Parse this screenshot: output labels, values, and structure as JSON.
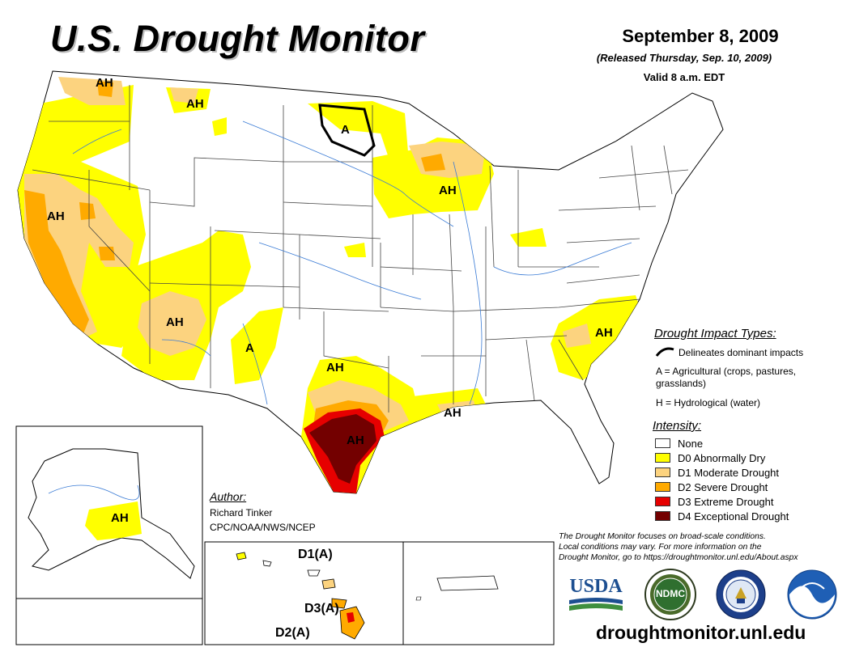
{
  "header": {
    "title": "U.S. Drought Monitor",
    "date": "September 8, 2009",
    "released": "(Released Thursday, Sep. 10, 2009)",
    "valid": "Valid 8 a.m. EDT"
  },
  "impact_types": {
    "title": "Drought Impact Types:",
    "delineates": "Delineates dominant impacts",
    "agricultural": "A = Agricultural (crops, pastures,",
    "agricultural_cont": "grasslands)",
    "hydrological": "H = Hydrological (water)"
  },
  "intensity": {
    "title": "Intensity:",
    "levels": [
      {
        "label": "None",
        "color": "#ffffff"
      },
      {
        "label": "D0 Abnormally Dry",
        "color": "#ffff00"
      },
      {
        "label": "D1 Moderate Drought",
        "color": "#fcd37f"
      },
      {
        "label": "D2 Severe Drought",
        "color": "#ffaa00"
      },
      {
        "label": "D3 Extreme Drought",
        "color": "#e60000"
      },
      {
        "label": "D4 Exceptional Drought",
        "color": "#730000"
      }
    ]
  },
  "author": {
    "title": "Author:",
    "name": "Richard Tinker",
    "org": "CPC/NOAA/NWS/NCEP"
  },
  "note": {
    "line1": "The Drought Monitor focuses on broad-scale conditions.",
    "line2": "Local conditions may vary. For more information on the",
    "line3": "Drought Monitor, go to https://droughtmonitor.unl.edu/About.aspx"
  },
  "map_labels": {
    "ah": "AH",
    "a": "A",
    "hawaii_d1": "D1(A)",
    "hawaii_d3": "D3(A)",
    "hawaii_d2": "D2(A)"
  },
  "logos": {
    "usda": "USDA",
    "ndmc": "NDMC"
  },
  "url": "droughtmonitor.unl.edu"
}
